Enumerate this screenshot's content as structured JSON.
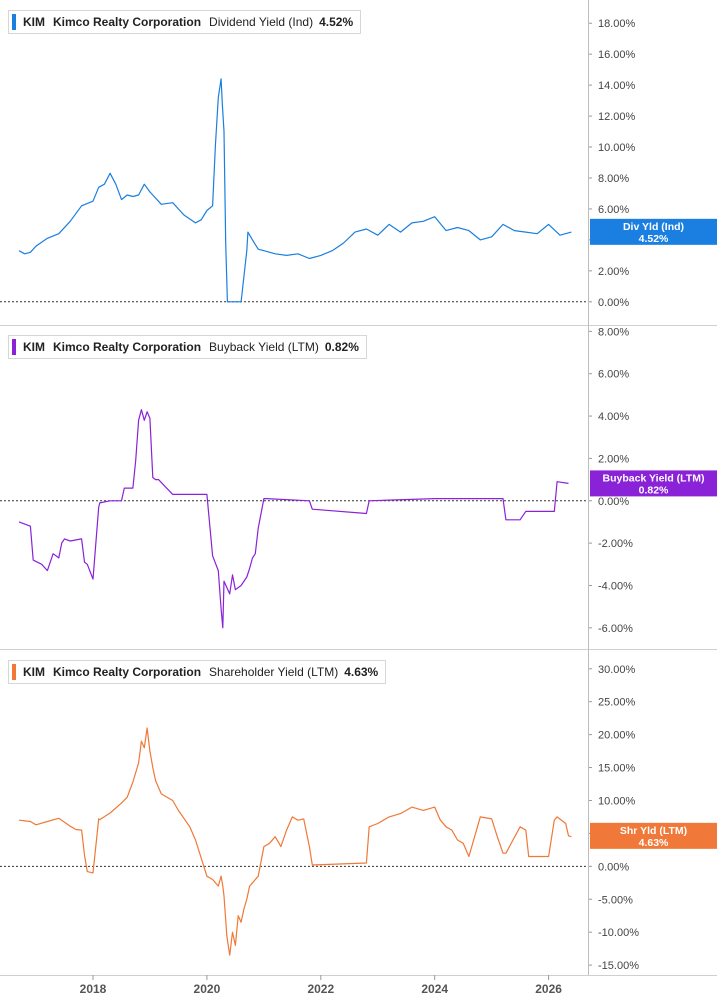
{
  "x_axis": {
    "labels": [
      "2018",
      "2020",
      "2022",
      "2024",
      "2026"
    ]
  },
  "chart_data": [
    {
      "type": "line",
      "ticker": "KIM",
      "company": "Kimco Realty Corporation",
      "metric": "Dividend Yield (Ind)",
      "current_value": "4.52%",
      "tag_label": "Div Yld (Ind)",
      "color": "#1a7fe0",
      "ylim": [
        -1.5,
        19.5
      ],
      "yticks": [
        "0.00%",
        "2.00%",
        "4.00%",
        "6.00%",
        "8.00%",
        "10.00%",
        "12.00%",
        "14.00%",
        "16.00%",
        "18.00%"
      ],
      "series": [
        {
          "x": [
            2016.7,
            2016.8,
            2016.9,
            2017.0,
            2017.2,
            2017.4,
            2017.6,
            2017.8,
            2018.0,
            2018.1,
            2018.2,
            2018.3,
            2018.4,
            2018.5,
            2018.6,
            2018.7,
            2018.8,
            2018.9,
            2019.0,
            2019.2,
            2019.4,
            2019.6,
            2019.8,
            2019.9,
            2020.0,
            2020.1,
            2020.15,
            2020.2,
            2020.25,
            2020.27,
            2020.3,
            2020.33,
            2020.36,
            2020.4,
            2020.6,
            2020.7,
            2020.72,
            2020.8,
            2020.9,
            2021.0,
            2021.2,
            2021.4,
            2021.6,
            2021.8,
            2022.0,
            2022.2,
            2022.4,
            2022.6,
            2022.8,
            2023.0,
            2023.2,
            2023.4,
            2023.6,
            2023.8,
            2024.0,
            2024.2,
            2024.4,
            2024.6,
            2024.8,
            2025.0,
            2025.2,
            2025.4,
            2025.6,
            2025.8,
            2026.0,
            2026.2,
            2026.4
          ],
          "y": [
            3.3,
            3.1,
            3.2,
            3.6,
            4.1,
            4.4,
            5.2,
            6.2,
            6.5,
            7.4,
            7.6,
            8.3,
            7.6,
            6.6,
            6.9,
            6.8,
            6.9,
            7.6,
            7.1,
            6.3,
            6.4,
            5.6,
            5.1,
            5.3,
            5.9,
            6.2,
            10.1,
            13.2,
            14.4,
            12.8,
            11.0,
            3.8,
            0,
            0,
            0,
            3.3,
            4.5,
            4.0,
            3.4,
            3.3,
            3.1,
            3.0,
            3.1,
            2.8,
            3.0,
            3.3,
            3.8,
            4.5,
            4.7,
            4.3,
            5.0,
            4.5,
            5.1,
            5.2,
            5.5,
            4.6,
            4.8,
            4.6,
            4.0,
            4.2,
            5.0,
            4.6,
            4.5,
            4.4,
            5.0,
            4.3,
            4.5
          ]
        }
      ]
    },
    {
      "type": "line",
      "ticker": "KIM",
      "company": "Kimco Realty Corporation",
      "metric": "Buyback Yield (LTM)",
      "current_value": "0.82%",
      "tag_label": "Buyback Yield (LTM)",
      "color": "#8a22d8",
      "ylim": [
        -7.0,
        8.3
      ],
      "yticks": [
        "-6.00%",
        "-4.00%",
        "-2.00%",
        "0.00%",
        "2.00%",
        "4.00%",
        "6.00%",
        "8.00%"
      ],
      "series": [
        {
          "x": [
            2016.7,
            2016.9,
            2016.95,
            2017.1,
            2017.2,
            2017.3,
            2017.4,
            2017.45,
            2017.5,
            2017.6,
            2017.8,
            2017.85,
            2017.9,
            2018.0,
            2018.1,
            2018.12,
            2018.3,
            2018.5,
            2018.55,
            2018.7,
            2018.75,
            2018.8,
            2018.85,
            2018.9,
            2018.95,
            2019.0,
            2019.05,
            2019.1,
            2019.15,
            2019.4,
            2019.45,
            2019.8,
            2020.0,
            2020.1,
            2020.2,
            2020.25,
            2020.28,
            2020.3,
            2020.4,
            2020.45,
            2020.5,
            2020.6,
            2020.7,
            2020.75,
            2020.8,
            2020.85,
            2020.9,
            2021.0,
            2021.05,
            2021.8,
            2021.85,
            2022.8,
            2022.85,
            2024.0,
            2025.2,
            2025.25,
            2025.5,
            2025.6,
            2025.65,
            2026.1,
            2026.15,
            2026.35
          ],
          "y": [
            -1.0,
            -1.2,
            -2.8,
            -3.0,
            -3.3,
            -2.5,
            -2.7,
            -2.0,
            -1.8,
            -1.9,
            -1.8,
            -2.9,
            -3.0,
            -3.7,
            -0.3,
            -0.1,
            0.0,
            0.0,
            0.6,
            0.6,
            1.9,
            3.8,
            4.3,
            3.8,
            4.2,
            3.9,
            1.1,
            1.0,
            1.0,
            0.3,
            0.3,
            0.3,
            0.3,
            -2.6,
            -3.3,
            -5.1,
            -6.0,
            -3.8,
            -4.4,
            -3.5,
            -4.2,
            -4.0,
            -3.6,
            -3.2,
            -2.7,
            -2.5,
            -1.3,
            0.1,
            0.1,
            0.0,
            -0.4,
            -0.6,
            0.0,
            0.1,
            0.1,
            -0.9,
            -0.9,
            -0.5,
            -0.5,
            -0.5,
            0.9,
            0.82
          ]
        }
      ]
    },
    {
      "type": "line",
      "ticker": "KIM",
      "company": "Kimco Realty Corporation",
      "metric": "Shareholder Yield (LTM)",
      "current_value": "4.63%",
      "tag_label": "Shr Yld (LTM)",
      "color": "#f07838",
      "ylim": [
        -16.5,
        33.0
      ],
      "yticks": [
        "-15.00%",
        "-10.00%",
        "-5.00%",
        "0.00%",
        "5.00%",
        "10.00%",
        "15.00%",
        "20.00%",
        "25.00%",
        "30.00%"
      ],
      "series": [
        {
          "x": [
            2016.7,
            2016.9,
            2017.0,
            2017.2,
            2017.4,
            2017.6,
            2017.7,
            2017.8,
            2017.85,
            2017.9,
            2018.0,
            2018.1,
            2018.12,
            2018.3,
            2018.5,
            2018.6,
            2018.7,
            2018.8,
            2018.85,
            2018.9,
            2018.95,
            2019.0,
            2019.05,
            2019.1,
            2019.2,
            2019.4,
            2019.5,
            2019.7,
            2019.8,
            2020.0,
            2020.1,
            2020.2,
            2020.25,
            2020.28,
            2020.3,
            2020.35,
            2020.4,
            2020.45,
            2020.5,
            2020.55,
            2020.6,
            2020.65,
            2020.7,
            2020.75,
            2020.8,
            2020.9,
            2021.0,
            2021.1,
            2021.2,
            2021.3,
            2021.4,
            2021.5,
            2021.6,
            2021.7,
            2021.8,
            2021.85,
            2022.8,
            2022.85,
            2023.0,
            2023.2,
            2023.4,
            2023.6,
            2023.8,
            2024.0,
            2024.1,
            2024.2,
            2024.3,
            2024.4,
            2024.5,
            2024.6,
            2024.8,
            2025.0,
            2025.1,
            2025.2,
            2025.25,
            2025.5,
            2025.6,
            2025.65,
            2026.0,
            2026.1,
            2026.15,
            2026.3,
            2026.35,
            2026.4
          ],
          "y": [
            7.0,
            6.8,
            6.3,
            6.8,
            7.3,
            6.1,
            5.6,
            5.5,
            1.7,
            -0.8,
            -1.0,
            7.2,
            7.1,
            8.1,
            9.6,
            10.5,
            12.8,
            15.7,
            19.0,
            18.0,
            21.0,
            17.5,
            15.0,
            13.0,
            11.0,
            10.0,
            8.5,
            6.0,
            4.0,
            -1.5,
            -2.0,
            -3.0,
            -1.5,
            -3.0,
            -4.5,
            -10.5,
            -13.5,
            -10.0,
            -12.0,
            -7.5,
            -8.5,
            -6.5,
            -5.0,
            -3.0,
            -2.5,
            -1.5,
            3.0,
            3.5,
            4.5,
            3.0,
            5.5,
            7.5,
            7.0,
            7.2,
            3.0,
            0.2,
            0.5,
            6.0,
            6.5,
            7.5,
            8.0,
            9.0,
            8.5,
            9.0,
            7.0,
            6.0,
            5.5,
            4.0,
            3.5,
            1.5,
            7.5,
            7.2,
            4.5,
            2.0,
            2.0,
            6.0,
            5.5,
            1.5,
            1.5,
            7.0,
            7.5,
            6.5,
            4.63,
            4.5
          ]
        }
      ]
    }
  ]
}
